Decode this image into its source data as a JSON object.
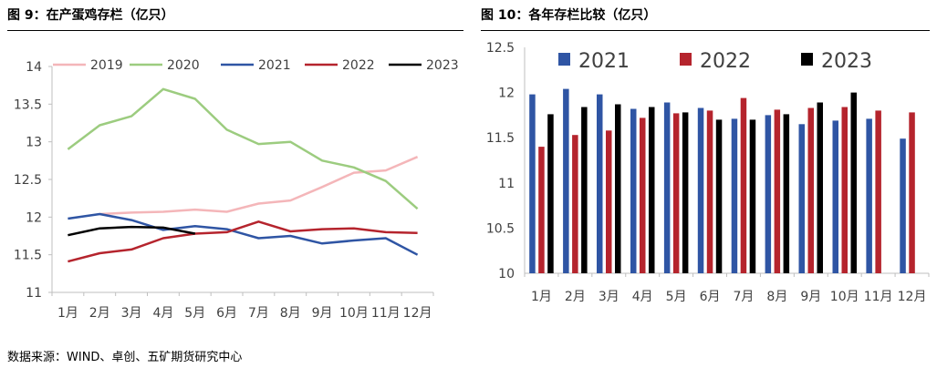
{
  "source_note": "数据来源：WIND、卓创、五矿期货研究中心",
  "colors": {
    "2019": "#F4B6B9",
    "2020": "#9CCC7F",
    "2021": "#2F55A4",
    "2022": "#B5242D",
    "2023": "#000000",
    "axis": "#BFBFBF"
  },
  "chart_data": [
    {
      "type": "line",
      "title": "图 9：在产蛋鸡存栏（亿只）",
      "categories": [
        "1月",
        "2月",
        "3月",
        "4月",
        "5月",
        "6月",
        "7月",
        "8月",
        "9月",
        "10月",
        "11月",
        "12月"
      ],
      "yticks": [
        "11",
        "11.5",
        "12",
        "12.5",
        "13",
        "13.5",
        "14"
      ],
      "ylim": [
        11,
        14
      ],
      "grid": false,
      "legend_position": "top",
      "series": [
        {
          "name": "2019",
          "values": [
            null,
            12.04,
            12.06,
            12.07,
            12.1,
            12.07,
            12.18,
            12.22,
            12.4,
            12.59,
            12.62,
            12.8
          ]
        },
        {
          "name": "2020",
          "values": [
            12.9,
            13.22,
            13.34,
            13.7,
            13.57,
            13.16,
            12.97,
            13.0,
            12.75,
            12.66,
            12.48,
            12.11
          ]
        },
        {
          "name": "2021",
          "values": [
            11.98,
            12.04,
            11.96,
            11.83,
            11.88,
            11.84,
            11.72,
            11.75,
            11.65,
            11.69,
            11.72,
            11.5
          ]
        },
        {
          "name": "2022",
          "values": [
            11.41,
            11.52,
            11.57,
            11.72,
            11.78,
            11.8,
            11.94,
            11.81,
            11.84,
            11.85,
            11.8,
            11.79
          ]
        },
        {
          "name": "2023",
          "values": [
            11.76,
            11.85,
            11.87,
            11.86,
            11.78,
            null,
            null,
            null,
            null,
            null,
            null,
            null
          ]
        }
      ]
    },
    {
      "type": "bar",
      "title": "图 10：各年存栏比较（亿只）",
      "categories": [
        "1月",
        "2月",
        "3月",
        "4月",
        "5月",
        "6月",
        "7月",
        "8月",
        "9月",
        "10月",
        "11月",
        "12月"
      ],
      "yticks": [
        "10",
        "10.5",
        "11",
        "11.5",
        "12",
        "12.5"
      ],
      "ylim": [
        10,
        12.5
      ],
      "grid": false,
      "legend_position": "top",
      "series": [
        {
          "name": "2021",
          "values": [
            11.98,
            12.04,
            11.98,
            11.82,
            11.89,
            11.83,
            11.71,
            11.75,
            11.65,
            11.69,
            11.71,
            11.49
          ]
        },
        {
          "name": "2022",
          "values": [
            11.4,
            11.53,
            11.58,
            11.72,
            11.77,
            11.8,
            11.94,
            11.81,
            11.83,
            11.84,
            11.8,
            11.78
          ]
        },
        {
          "name": "2023",
          "values": [
            11.76,
            11.84,
            11.87,
            11.84,
            11.78,
            11.7,
            11.7,
            11.76,
            11.89,
            12.0,
            null,
            null
          ]
        }
      ]
    }
  ]
}
